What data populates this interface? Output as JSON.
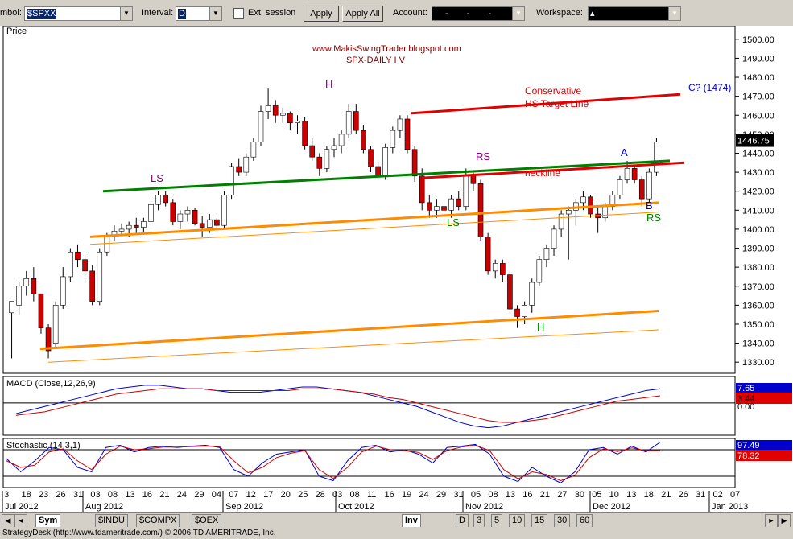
{
  "toolbar": {
    "symbol_label": "mbol:",
    "symbol_value": "$SPXX",
    "interval_label": "Interval:",
    "interval_value": "D",
    "ext_session_label": "Ext. session",
    "apply_label": "Apply",
    "apply_all_label": "Apply All",
    "account_label": "Account:",
    "account_value": "- - -",
    "workspace_label": "Workspace:",
    "workspace_value": "▴"
  },
  "chart_data": [
    {
      "type": "candlestick",
      "title": "www.MakisSwingTrader.blogspot.com",
      "subtitle": "SPX-DAILY I V",
      "ylabel": "Price",
      "ylim": [
        1325,
        1505
      ],
      "y_ticks": [
        "1500.00",
        "1490.00",
        "1480.00",
        "1470.00",
        "1460.00",
        "1450.00",
        "1440.00",
        "1430.00",
        "1420.00",
        "1410.00",
        "1400.00",
        "1390.00",
        "1380.00",
        "1370.00",
        "1360.00",
        "1350.00",
        "1340.00",
        "1330.00"
      ],
      "last_price": "1446.75",
      "candles": [
        [
          1356,
          1362,
          1332,
          1362
        ],
        [
          1360,
          1372,
          1355,
          1370
        ],
        [
          1370,
          1378,
          1365,
          1374
        ],
        [
          1374,
          1380,
          1362,
          1366
        ],
        [
          1366,
          1366,
          1345,
          1348
        ],
        [
          1348,
          1350,
          1332,
          1336
        ],
        [
          1340,
          1362,
          1338,
          1360
        ],
        [
          1360,
          1380,
          1358,
          1375
        ],
        [
          1375,
          1390,
          1372,
          1388
        ],
        [
          1388,
          1392,
          1380,
          1384
        ],
        [
          1384,
          1386,
          1372,
          1378
        ],
        [
          1378,
          1381,
          1360,
          1362
        ],
        [
          1362,
          1390,
          1360,
          1388
        ],
        [
          1388,
          1398,
          1386,
          1396
        ],
        [
          1396,
          1402,
          1394,
          1399
        ],
        [
          1399,
          1403,
          1397,
          1400
        ],
        [
          1400,
          1404,
          1396,
          1402
        ],
        [
          1402,
          1406,
          1398,
          1401
        ],
        [
          1401,
          1406,
          1398,
          1404
        ],
        [
          1404,
          1416,
          1402,
          1413
        ],
        [
          1413,
          1420,
          1410,
          1418
        ],
        [
          1418,
          1420,
          1412,
          1414
        ],
        [
          1414,
          1416,
          1402,
          1404
        ],
        [
          1404,
          1410,
          1400,
          1408
        ],
        [
          1408,
          1412,
          1404,
          1410
        ],
        [
          1410,
          1411,
          1402,
          1403
        ],
        [
          1403,
          1407,
          1396,
          1401
        ],
        [
          1401,
          1408,
          1398,
          1405
        ],
        [
          1405,
          1406,
          1400,
          1402
        ],
        [
          1402,
          1420,
          1400,
          1418
        ],
        [
          1418,
          1435,
          1416,
          1433
        ],
        [
          1433,
          1437,
          1428,
          1430
        ],
        [
          1430,
          1440,
          1428,
          1438
        ],
        [
          1438,
          1448,
          1436,
          1446
        ],
        [
          1446,
          1465,
          1444,
          1462
        ],
        [
          1462,
          1474,
          1458,
          1465
        ],
        [
          1465,
          1468,
          1456,
          1460
        ],
        [
          1460,
          1464,
          1456,
          1461
        ],
        [
          1461,
          1462,
          1452,
          1456
        ],
        [
          1456,
          1460,
          1450,
          1457
        ],
        [
          1457,
          1459,
          1442,
          1444
        ],
        [
          1444,
          1448,
          1436,
          1438
        ],
        [
          1438,
          1440,
          1428,
          1432
        ],
        [
          1432,
          1444,
          1430,
          1442
        ],
        [
          1442,
          1448,
          1438,
          1444
        ],
        [
          1444,
          1452,
          1440,
          1450
        ],
        [
          1450,
          1466,
          1448,
          1462
        ],
        [
          1462,
          1466,
          1450,
          1452
        ],
        [
          1452,
          1455,
          1440,
          1442
        ],
        [
          1442,
          1444,
          1430,
          1433
        ],
        [
          1433,
          1436,
          1426,
          1428
        ],
        [
          1428,
          1445,
          1426,
          1443
        ],
        [
          1443,
          1454,
          1440,
          1452
        ],
        [
          1452,
          1460,
          1448,
          1458
        ],
        [
          1458,
          1460,
          1440,
          1442
        ],
        [
          1442,
          1444,
          1425,
          1428
        ],
        [
          1428,
          1432,
          1410,
          1414
        ],
        [
          1414,
          1418,
          1406,
          1410
        ],
        [
          1410,
          1416,
          1406,
          1412
        ],
        [
          1412,
          1415,
          1404,
          1410
        ],
        [
          1410,
          1418,
          1406,
          1416
        ],
        [
          1416,
          1420,
          1410,
          1412
        ],
        [
          1412,
          1432,
          1410,
          1428
        ],
        [
          1428,
          1430,
          1420,
          1424
        ],
        [
          1424,
          1426,
          1394,
          1396
        ],
        [
          1396,
          1398,
          1376,
          1378
        ],
        [
          1378,
          1384,
          1374,
          1382
        ],
        [
          1382,
          1384,
          1372,
          1376
        ],
        [
          1376,
          1378,
          1356,
          1358
        ],
        [
          1358,
          1360,
          1348,
          1354
        ],
        [
          1354,
          1362,
          1350,
          1360
        ],
        [
          1360,
          1374,
          1356,
          1372
        ],
        [
          1372,
          1386,
          1370,
          1384
        ],
        [
          1384,
          1392,
          1380,
          1390
        ],
        [
          1390,
          1402,
          1386,
          1400
        ],
        [
          1400,
          1410,
          1396,
          1408
        ],
        [
          1408,
          1412,
          1384,
          1410
        ],
        [
          1410,
          1416,
          1402,
          1414
        ],
        [
          1414,
          1420,
          1410,
          1417
        ],
        [
          1417,
          1418,
          1406,
          1408
        ],
        [
          1408,
          1412,
          1398,
          1406
        ],
        [
          1406,
          1414,
          1404,
          1412
        ],
        [
          1412,
          1420,
          1410,
          1418
        ],
        [
          1418,
          1428,
          1416,
          1426
        ],
        [
          1426,
          1436,
          1424,
          1432
        ],
        [
          1432,
          1434,
          1424,
          1426
        ],
        [
          1426,
          1428,
          1412,
          1416
        ],
        [
          1416,
          1432,
          1414,
          1430
        ],
        [
          1430,
          1448,
          1428,
          1446
        ]
      ],
      "annotations": [
        "H",
        "LS",
        "RS",
        "LS",
        "H",
        "RS",
        "A",
        "B",
        "neckline",
        "Conservative",
        "HS Target Line",
        "C? (1474)"
      ],
      "x_ticks": [
        "3",
        "18",
        "23",
        "26",
        "31",
        "03",
        "08",
        "13",
        "16",
        "21",
        "24",
        "29",
        "04",
        "07",
        "12",
        "17",
        "20",
        "25",
        "28",
        "03",
        "08",
        "11",
        "16",
        "19",
        "24",
        "29",
        "31",
        "05",
        "08",
        "13",
        "16",
        "21",
        "27",
        "30",
        "05",
        "10",
        "13",
        "18",
        "21",
        "26",
        "31",
        "02",
        "07"
      ],
      "x_month_labels": [
        "Jul 2012",
        "Aug 2012",
        "Sep 2012",
        "Oct 2012",
        "Nov 2012",
        "Dec 2012",
        "Jan 2013"
      ]
    },
    {
      "type": "line",
      "title": "MACD (Close,12,26,9)",
      "values_shown": [
        "7.65",
        "3.44",
        "0.00"
      ],
      "series": [
        {
          "values": [
            -6,
            -4,
            -2,
            0,
            2,
            4,
            6,
            8,
            9,
            10,
            10,
            9,
            8,
            8,
            7,
            6,
            6,
            6,
            7,
            8,
            9,
            9,
            8,
            7,
            6,
            4,
            2,
            0,
            -2,
            -5,
            -8,
            -11,
            -13,
            -14,
            -13,
            -11,
            -9,
            -7,
            -5,
            -3,
            -1,
            1,
            3,
            5,
            7,
            8
          ]
        },
        {
          "values": [
            -7,
            -6,
            -5,
            -3,
            -1,
            1,
            3,
            5,
            6,
            7,
            8,
            8,
            8,
            8,
            7,
            7,
            7,
            7,
            7,
            7,
            8,
            8,
            8,
            7,
            6,
            5,
            3,
            2,
            0,
            -2,
            -4,
            -6,
            -8,
            -10,
            -11,
            -11,
            -10,
            -9,
            -7,
            -5,
            -3,
            -1,
            1,
            2,
            3,
            4
          ]
        }
      ]
    },
    {
      "type": "line",
      "title": "Stochastic (14,3,1)",
      "values_shown": [
        "97.49",
        "78.32"
      ],
      "series": [
        {
          "values": [
            60,
            30,
            55,
            85,
            80,
            40,
            30,
            85,
            90,
            75,
            85,
            88,
            85,
            88,
            90,
            85,
            35,
            20,
            50,
            70,
            75,
            80,
            20,
            10,
            55,
            85,
            90,
            75,
            80,
            70,
            50,
            85,
            88,
            92,
            70,
            20,
            8,
            40,
            20,
            5,
            30,
            80,
            85,
            70,
            88,
            75,
            97
          ]
        },
        {
          "values": [
            55,
            40,
            45,
            75,
            82,
            55,
            35,
            70,
            88,
            80,
            82,
            86,
            86,
            87,
            88,
            87,
            55,
            28,
            40,
            62,
            72,
            78,
            35,
            15,
            40,
            75,
            88,
            80,
            78,
            74,
            58,
            78,
            86,
            90,
            78,
            35,
            14,
            30,
            24,
            10,
            22,
            62,
            82,
            76,
            84,
            78,
            78
          ]
        }
      ]
    }
  ],
  "bottom": {
    "sym_tab": "Sym",
    "indu_tab": "$INDU",
    "compx_tab": "$COMPX",
    "oex_tab": "$OEX",
    "inv_tab": "Inv",
    "d_tab": "D",
    "t3": "3",
    "t5": "5",
    "t10": "10",
    "t15": "15",
    "t30": "30",
    "t60": "60"
  },
  "status_text": "StrategyDesk (http://www.tdameritrade.com/) © 2006 TD AMERITRADE, Inc.",
  "colors": {
    "up": "#ffffff",
    "down": "#cc0000",
    "green_line": "#008000",
    "orange": "#ff8c00",
    "red_line": "#e00000",
    "blue": "#0000cc"
  }
}
